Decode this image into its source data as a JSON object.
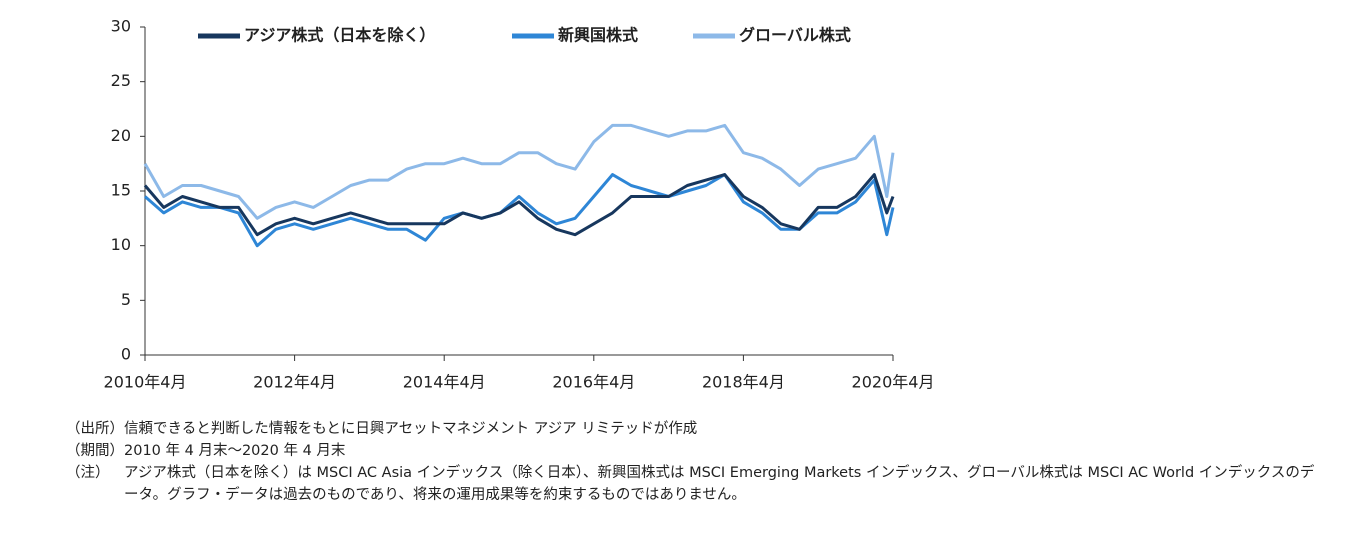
{
  "chart_data": {
    "type": "line",
    "x": [
      "2010-04",
      "2010-07",
      "2010-10",
      "2011-01",
      "2011-04",
      "2011-07",
      "2011-10",
      "2012-01",
      "2012-04",
      "2012-07",
      "2012-10",
      "2013-01",
      "2013-04",
      "2013-07",
      "2013-10",
      "2014-01",
      "2014-04",
      "2014-07",
      "2014-10",
      "2015-01",
      "2015-04",
      "2015-07",
      "2015-10",
      "2016-01",
      "2016-04",
      "2016-07",
      "2016-10",
      "2017-01",
      "2017-04",
      "2017-07",
      "2017-10",
      "2018-01",
      "2018-04",
      "2018-07",
      "2018-10",
      "2019-01",
      "2019-04",
      "2019-07",
      "2019-10",
      "2020-01",
      "2020-03",
      "2020-04"
    ],
    "series": [
      {
        "name": "アジア株式（日本を除く）",
        "color": "#17375e",
        "values": [
          15.5,
          13.5,
          14.5,
          14,
          13.5,
          13.5,
          11,
          12,
          12.5,
          12,
          12.5,
          13,
          12.5,
          12,
          12,
          12,
          12,
          13,
          12.5,
          13,
          14,
          12.5,
          11.5,
          11,
          12,
          13,
          14.5,
          14.5,
          14.5,
          15.5,
          16,
          16.5,
          14.5,
          13.5,
          12,
          11.5,
          13.5,
          13.5,
          14.5,
          16.5,
          13,
          14.5
        ]
      },
      {
        "name": "新興国株式",
        "color": "#2e86d6",
        "values": [
          14.5,
          13,
          14,
          13.5,
          13.5,
          13,
          10,
          11.5,
          12,
          11.5,
          12,
          12.5,
          12,
          11.5,
          11.5,
          10.5,
          12.5,
          13,
          12.5,
          13,
          14.5,
          13,
          12,
          12.5,
          14.5,
          16.5,
          15.5,
          15,
          14.5,
          15,
          15.5,
          16.5,
          14,
          13,
          11.5,
          11.5,
          13,
          13,
          14,
          16,
          11,
          13.5
        ]
      },
      {
        "name": "グローバル株式",
        "color": "#8db9e8",
        "values": [
          17.5,
          14.5,
          15.5,
          15.5,
          15,
          14.5,
          12.5,
          13.5,
          14,
          13.5,
          14.5,
          15.5,
          16,
          16,
          17,
          17.5,
          17.5,
          18,
          17.5,
          17.5,
          18.5,
          18.5,
          17.5,
          17,
          19.5,
          21,
          21,
          20.5,
          20,
          20.5,
          20.5,
          21,
          18.5,
          18,
          17,
          15.5,
          17,
          17.5,
          18,
          20,
          14.5,
          18.5
        ]
      }
    ],
    "xlim": [
      "2010-04",
      "2020-04"
    ],
    "xticks": [
      {
        "value": "2010-04",
        "label": "2010年4月"
      },
      {
        "value": "2012-04",
        "label": "2012年4月"
      },
      {
        "value": "2014-04",
        "label": "2014年4月"
      },
      {
        "value": "2016-04",
        "label": "2016年4月"
      },
      {
        "value": "2018-04",
        "label": "2018年4月"
      },
      {
        "value": "2020-04",
        "label": "2020年4月"
      }
    ],
    "ylim": [
      0,
      30
    ],
    "yticks": [
      0,
      5,
      10,
      15,
      20,
      25,
      30
    ],
    "grid": false,
    "legend": "top"
  },
  "notes": [
    {
      "label": "（出所）",
      "text": "信頼できると判断した情報をもとに日興アセットマネジメント アジア リミテッドが作成"
    },
    {
      "label": "（期間）",
      "text": "2010 年 4 月末～2020 年 4 月末"
    },
    {
      "label": "（注）",
      "text": "アジア株式（日本を除く）は MSCI AC Asia インデックス（除く日本）、新興国株式は MSCI Emerging Markets インデックス、グローバル株式は MSCI AC World インデックスのデータ。グラフ・データは過去のものであり、将来の運用成果等を約束するものではありません。"
    }
  ]
}
